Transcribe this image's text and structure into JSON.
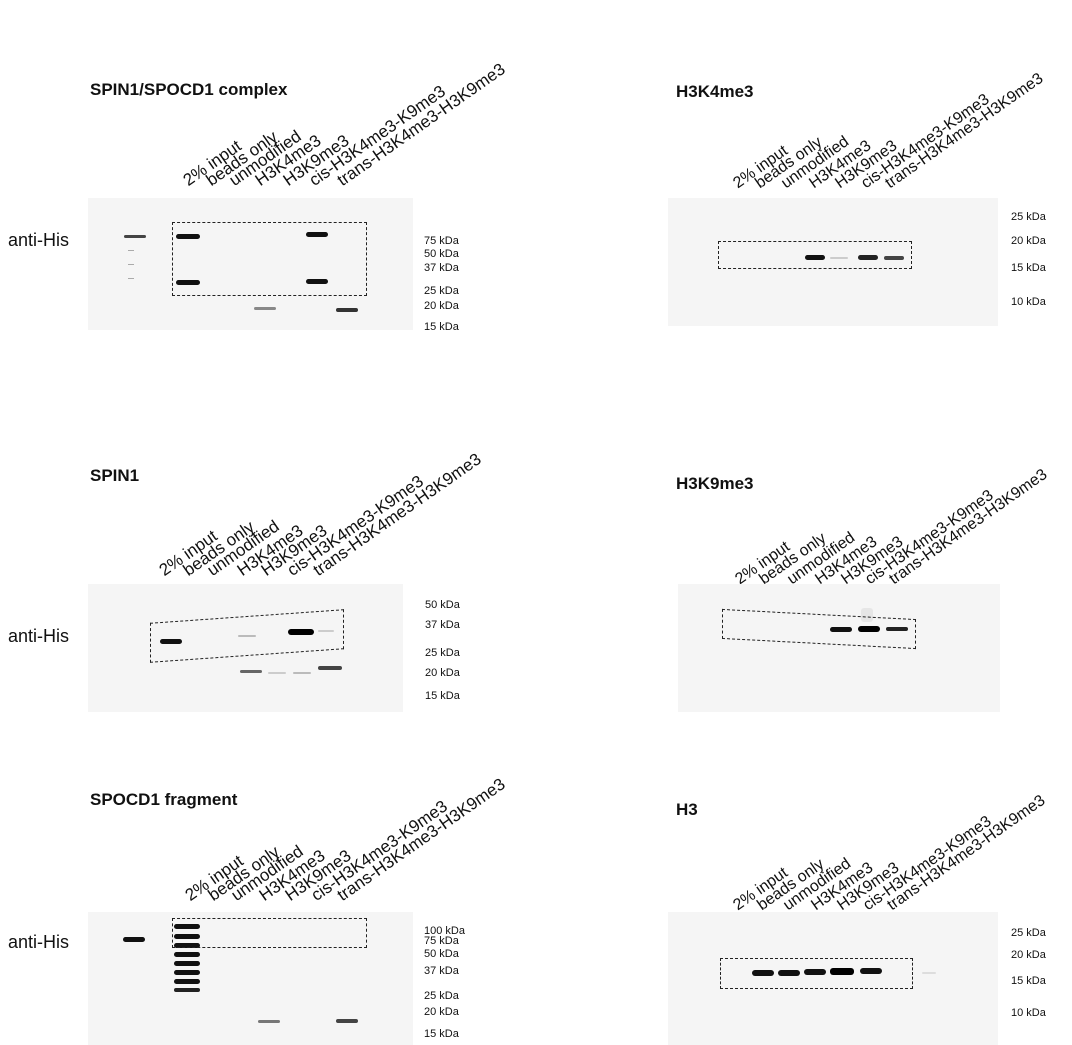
{
  "lanes": [
    "2% input",
    "beads only",
    "unmodified",
    "H3K4me3",
    "H3K9me3",
    "cis-H3K4me3-K9me3",
    "trans-H3K4me3-H3K9me3"
  ],
  "antibody_label": "anti-His",
  "panels": {
    "spin1_spocd1": {
      "title": "SPIN1/SPOCD1 complex",
      "markers": [
        "75 kDa",
        "50 kDa",
        "37 kDa",
        "25 kDa",
        "20 kDa",
        "15 kDa"
      ]
    },
    "h3k4me3": {
      "title": "H3K4me3",
      "markers": [
        "25 kDa",
        "20 kDa",
        "15 kDa",
        "10 kDa"
      ]
    },
    "spin1": {
      "title": "SPIN1",
      "markers": [
        "50 kDa",
        "37 kDa",
        "25 kDa",
        "20 kDa",
        "15 kDa"
      ]
    },
    "h3k9me3": {
      "title": "H3K9me3",
      "markers": []
    },
    "spocd1_fragment": {
      "title": "SPOCD1 fragment",
      "markers": [
        "100 kDa",
        "75 kDa",
        "50 kDa",
        "37 kDa",
        "25 kDa",
        "20 kDa",
        "15 kDa"
      ]
    },
    "h3": {
      "title": "H3",
      "markers": [
        "25 kDa",
        "20 kDa",
        "15 kDa",
        "10 kDa"
      ]
    }
  }
}
